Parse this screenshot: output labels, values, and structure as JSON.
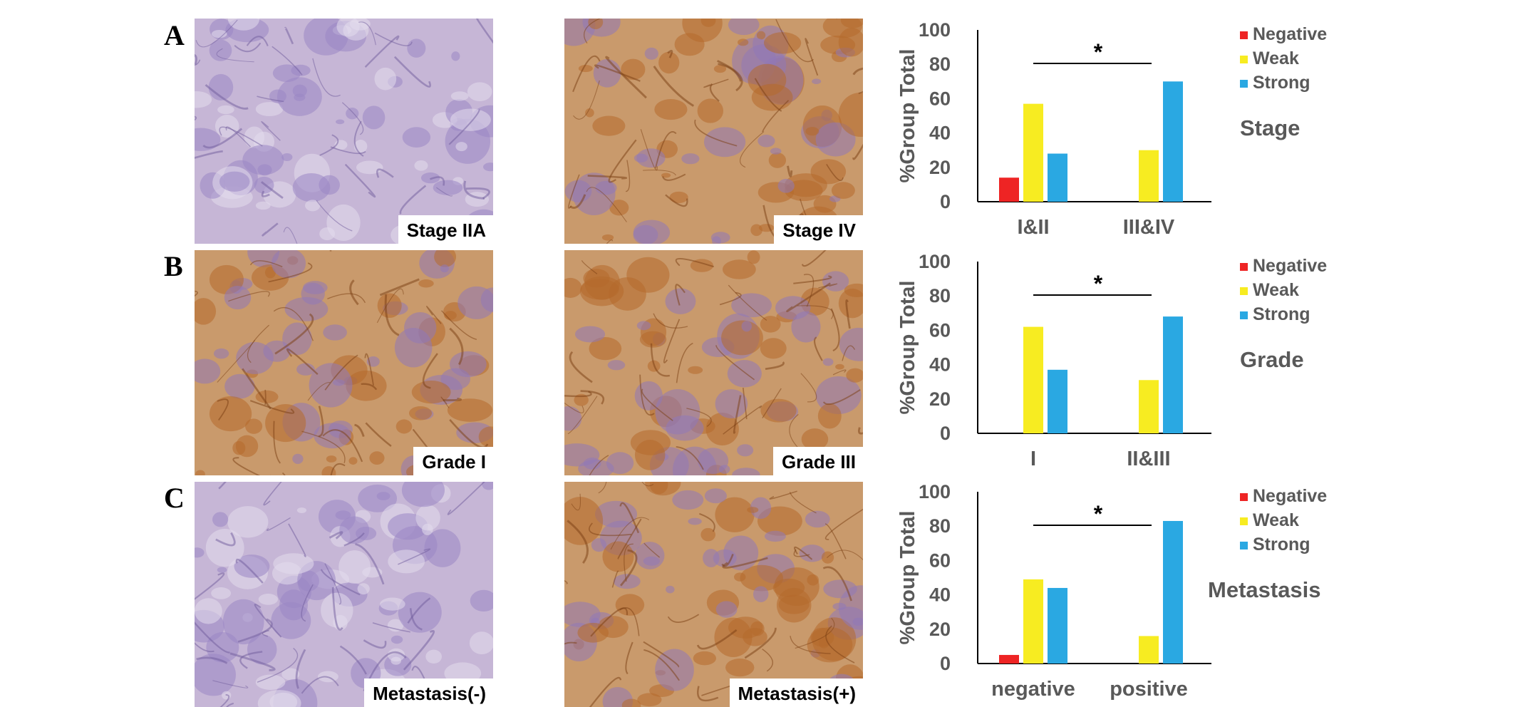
{
  "rows": [
    {
      "letter": "A",
      "images": [
        {
          "caption": "Stage IIA",
          "stain": "weak"
        },
        {
          "caption": "Stage IV",
          "stain": "strong"
        }
      ]
    },
    {
      "letter": "B",
      "images": [
        {
          "caption": "Grade I",
          "stain": "strong"
        },
        {
          "caption": "Grade III",
          "stain": "strong"
        }
      ]
    },
    {
      "letter": "C",
      "images": [
        {
          "caption": "Metastasis(-)",
          "stain": "weak"
        },
        {
          "caption": "Metastasis(+)",
          "stain": "strong"
        }
      ]
    }
  ],
  "colors": {
    "negative": "#ee2424",
    "weak": "#f7ec21",
    "strong": "#2aa8e2",
    "text": "#595959"
  },
  "chart_data": [
    {
      "type": "bar",
      "title": "Stage",
      "ylabel": "%Group Total",
      "ylim": [
        0,
        100
      ],
      "yticks": [
        0,
        20,
        40,
        60,
        80,
        100
      ],
      "categories": [
        "I&II",
        "III&IV"
      ],
      "series": [
        {
          "name": "Negative",
          "values": [
            14,
            0
          ]
        },
        {
          "name": "Weak",
          "values": [
            57,
            30
          ]
        },
        {
          "name": "Strong",
          "values": [
            28,
            70
          ]
        }
      ],
      "significance": "*",
      "legend": "top-right"
    },
    {
      "type": "bar",
      "title": "Grade",
      "ylabel": "%Group Total",
      "ylim": [
        0,
        100
      ],
      "yticks": [
        0,
        20,
        40,
        60,
        80,
        100
      ],
      "categories": [
        "I",
        "II&III"
      ],
      "series": [
        {
          "name": "Negative",
          "values": [
            0,
            0
          ]
        },
        {
          "name": "Weak",
          "values": [
            62,
            31
          ]
        },
        {
          "name": "Strong",
          "values": [
            37,
            68
          ]
        }
      ],
      "significance": "*",
      "legend": "top-right"
    },
    {
      "type": "bar",
      "title": "Metastasis",
      "ylabel": "%Group Total",
      "ylim": [
        0,
        100
      ],
      "yticks": [
        0,
        20,
        40,
        60,
        80,
        100
      ],
      "categories": [
        "negative",
        "positive"
      ],
      "series": [
        {
          "name": "Negative",
          "values": [
            5,
            0
          ]
        },
        {
          "name": "Weak",
          "values": [
            49,
            16
          ]
        },
        {
          "name": "Strong",
          "values": [
            44,
            83
          ]
        }
      ],
      "significance": "*",
      "legend": "top-right"
    }
  ]
}
